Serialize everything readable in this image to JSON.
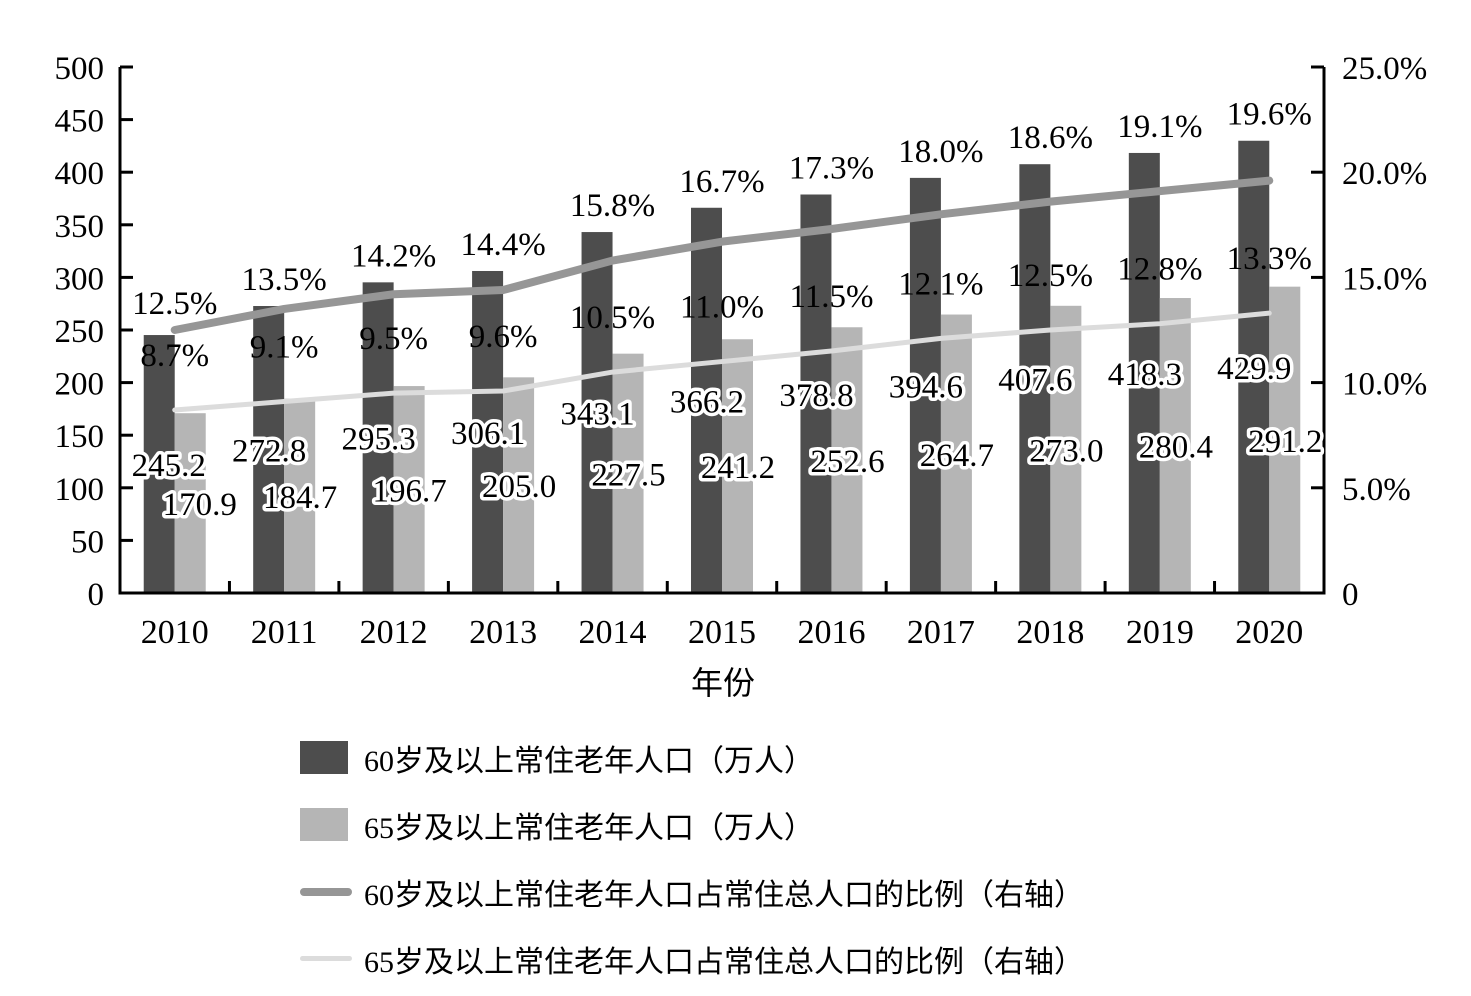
{
  "chart_data": {
    "type": "bar",
    "subtype": "combo-bar-line-dual-axis",
    "title": "",
    "xlabel": "年份",
    "categories": [
      "2010",
      "2011",
      "2012",
      "2013",
      "2014",
      "2015",
      "2016",
      "2017",
      "2018",
      "2019",
      "2020"
    ],
    "left_axis": {
      "min": 0,
      "max": 500,
      "step": 50,
      "tick_labels": [
        "500",
        "450",
        "400",
        "350",
        "300",
        "250",
        "200",
        "150",
        "100",
        "50",
        "0"
      ]
    },
    "right_axis": {
      "min": 0,
      "max": 25,
      "step": 5,
      "tick_labels": [
        "25.0%",
        "20.0%",
        "15.0%",
        "10.0%",
        "5.0%",
        "0"
      ]
    },
    "grid": "off",
    "legend_position": "bottom",
    "series": [
      {
        "name": "60岁及以上常住老年人口（万人）",
        "type": "bar",
        "axis": "left",
        "color": "#4d4d4d",
        "values": [
          245.2,
          272.8,
          295.3,
          306.1,
          343.1,
          366.2,
          378.8,
          394.6,
          407.6,
          418.3,
          429.9
        ],
        "labels": [
          "245.2",
          "272.8",
          "295.3",
          "306.1",
          "343.1",
          "366.2",
          "378.8",
          "394.6",
          "407.6",
          "418.3",
          "429.9"
        ]
      },
      {
        "name": "65岁及以上常住老年人口（万人）",
        "type": "bar",
        "axis": "left",
        "color": "#b5b5b5",
        "values": [
          170.9,
          184.7,
          196.7,
          205.0,
          227.5,
          241.2,
          252.6,
          264.7,
          273.0,
          280.4,
          291.2
        ],
        "labels": [
          "170.9",
          "184.7",
          "196.7",
          "205.0",
          "227.5",
          "241.2",
          "252.6",
          "264.7",
          "273.0",
          "280.4",
          "291.2"
        ]
      },
      {
        "name": "60岁及以上常住老年人口占常住总人口的比例（右轴）",
        "type": "line",
        "axis": "right",
        "color": "#969696",
        "stroke_width": 8,
        "values": [
          12.5,
          13.5,
          14.2,
          14.4,
          15.8,
          16.7,
          17.3,
          18.0,
          18.6,
          19.1,
          19.6
        ],
        "labels": [
          "12.5%",
          "13.5%",
          "14.2%",
          "14.4%",
          "15.8%",
          "16.7%",
          "17.3%",
          "18.0%",
          "18.6%",
          "19.1%",
          "19.6%"
        ]
      },
      {
        "name": "65岁及以上常住老年人口占常住总人口的比例（右轴）",
        "type": "line",
        "axis": "right",
        "color": "#dcdcdc",
        "stroke_width": 5,
        "values": [
          8.7,
          9.1,
          9.5,
          9.6,
          10.5,
          11.0,
          11.5,
          12.1,
          12.5,
          12.8,
          13.3
        ],
        "labels": [
          "8.7%",
          "9.1%",
          "9.5%",
          "9.6%",
          "10.5%",
          "11.0%",
          "11.5%",
          "12.1%",
          "12.5%",
          "12.8%",
          "13.3%"
        ]
      }
    ]
  }
}
